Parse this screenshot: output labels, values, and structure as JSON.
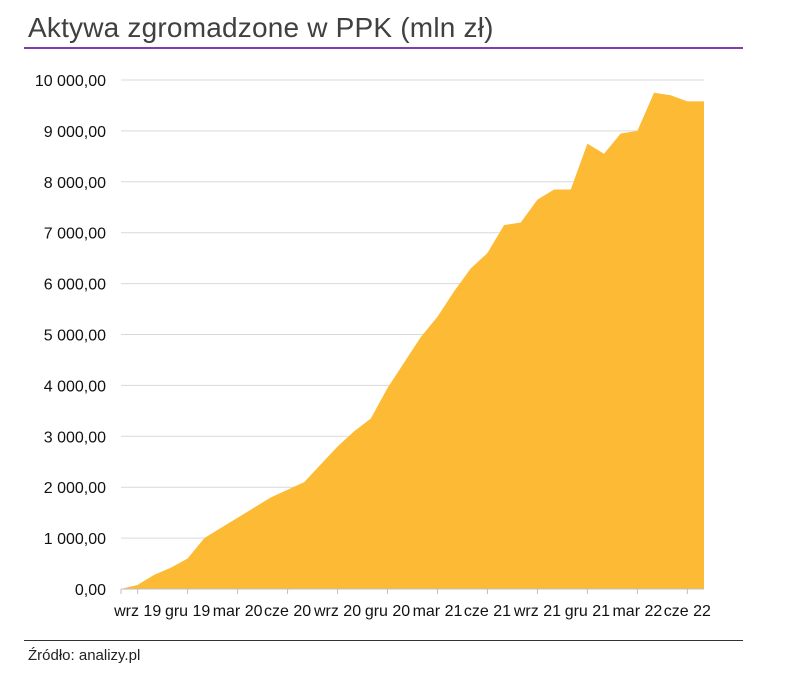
{
  "title": "Aktywa zgromadzone w PPK (mln zł)",
  "source": "Źródło: analizy.pl",
  "colors": {
    "area": "#FDBA35",
    "title_rule": "#7B3FB0",
    "grid": "#D9D9D9",
    "axis": "#BFBFBF"
  },
  "chart_data": {
    "type": "area",
    "title": "Aktywa zgromadzone w PPK (mln zł)",
    "xlabel": "",
    "ylabel": "",
    "ylim": [
      0,
      10000
    ],
    "grid": true,
    "yticks": [
      0,
      1000,
      2000,
      3000,
      4000,
      5000,
      6000,
      7000,
      8000,
      9000,
      10000
    ],
    "ytick_labels": [
      "0,00",
      "1 000,00",
      "2 000,00",
      "3 000,00",
      "4 000,00",
      "5 000,00",
      "6 000,00",
      "7 000,00",
      "8 000,00",
      "9 000,00",
      "10 000,00"
    ],
    "xtick_labels": [
      "wrz 19",
      "gru 19",
      "mar 20",
      "cze 20",
      "wrz 20",
      "gru 20",
      "mar 21",
      "cze 21",
      "wrz 21",
      "gru 21",
      "mar 22",
      "cze 22"
    ],
    "xtick_months": [
      "2019-09",
      "2019-12",
      "2020-03",
      "2020-06",
      "2020-09",
      "2020-12",
      "2021-03",
      "2021-06",
      "2021-09",
      "2021-12",
      "2022-03",
      "2022-06"
    ],
    "x": [
      "2019-08",
      "2019-09",
      "2019-10",
      "2019-11",
      "2019-12",
      "2020-01",
      "2020-02",
      "2020-03",
      "2020-04",
      "2020-05",
      "2020-06",
      "2020-07",
      "2020-08",
      "2020-09",
      "2020-10",
      "2020-11",
      "2020-12",
      "2021-01",
      "2021-02",
      "2021-03",
      "2021-04",
      "2021-05",
      "2021-06",
      "2021-07",
      "2021-08",
      "2021-09",
      "2021-10",
      "2021-11",
      "2021-12",
      "2022-01",
      "2022-02",
      "2022-03",
      "2022-04",
      "2022-05",
      "2022-06",
      "2022-07"
    ],
    "series": [
      {
        "values": [
          0,
          80,
          280,
          420,
          600,
          1000,
          1200,
          1400,
          1600,
          1800,
          1950,
          2100,
          2450,
          2800,
          3100,
          3350,
          3950,
          4450,
          4950,
          5350,
          5850,
          6300,
          6600,
          7150,
          7200,
          7650,
          7850,
          7850,
          8750,
          8550,
          8950,
          9000,
          9750,
          9700,
          9580,
          9580
        ]
      }
    ]
  }
}
